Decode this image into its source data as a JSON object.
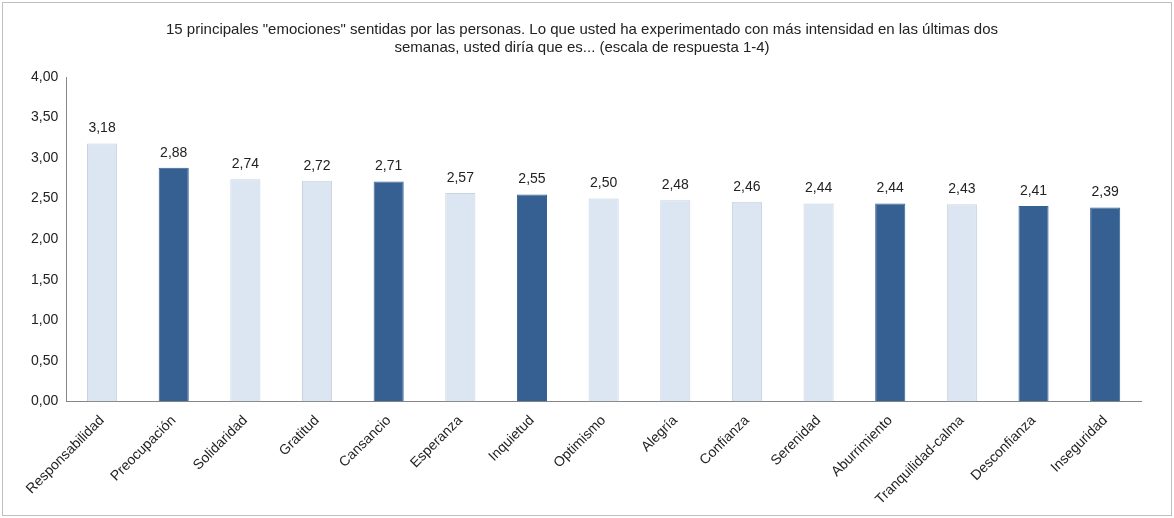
{
  "chart_data": {
    "type": "bar",
    "title": "15 principales \"emociones\" sentidas por las personas. Lo que usted ha experimentado con más intensidad en las últimas dos semanas, usted diría que es... (escala de respuesta 1-4)",
    "categories": [
      "Responsabilidad",
      "Preocupación",
      "Solidaridad",
      "Gratitud",
      "Cansancio",
      "Esperanza",
      "Inquietud",
      "Optimismo",
      "Alegría",
      "Confianza",
      "Serenidad",
      "Aburrimiento",
      "Tranquilidad-calma",
      "Desconfianza",
      "Inseguridad"
    ],
    "values": [
      3.18,
      2.88,
      2.74,
      2.72,
      2.71,
      2.57,
      2.55,
      2.5,
      2.48,
      2.46,
      2.44,
      2.44,
      2.43,
      2.41,
      2.39
    ],
    "value_labels": [
      "3,18",
      "2,88",
      "2,74",
      "2,72",
      "2,71",
      "2,57",
      "2,55",
      "2,50",
      "2,48",
      "2,46",
      "2,44",
      "2,44",
      "2,43",
      "2,41",
      "2,39"
    ],
    "colors": [
      "#dce6f2",
      "#376092",
      "#dce6f2",
      "#dce6f2",
      "#376092",
      "#dce6f2",
      "#376092",
      "#dce6f2",
      "#dce6f2",
      "#dce6f2",
      "#dce6f2",
      "#376092",
      "#dce6f2",
      "#376092",
      "#376092"
    ],
    "ylim": [
      0,
      4
    ],
    "yticks": [
      {
        "value": 0,
        "label": "0,00"
      },
      {
        "value": 0.5,
        "label": "0,50"
      },
      {
        "value": 1,
        "label": "1,00"
      },
      {
        "value": 1.5,
        "label": "1,50"
      },
      {
        "value": 2,
        "label": "2,00"
      },
      {
        "value": 2.5,
        "label": "2,50"
      },
      {
        "value": 3,
        "label": "3,00"
      },
      {
        "value": 3.5,
        "label": "3,50"
      },
      {
        "value": 4,
        "label": "4,00"
      }
    ],
    "grid": false,
    "legend": false
  }
}
